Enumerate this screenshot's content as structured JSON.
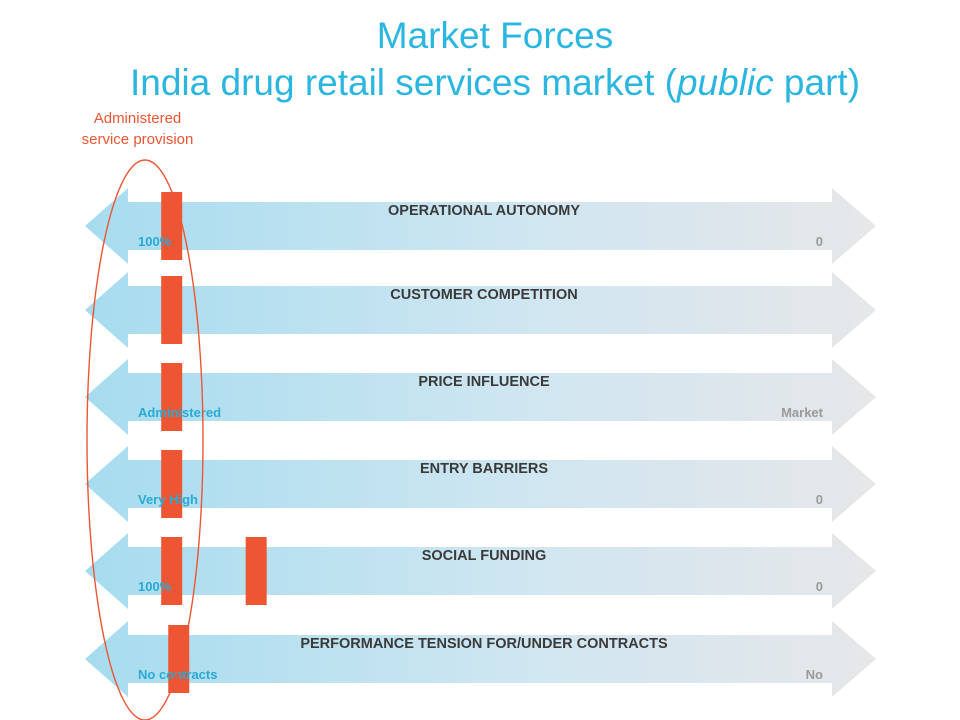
{
  "title": {
    "line1": "Market Forces",
    "line2_pre": "India drug retail services market (",
    "line2_italic": "public",
    "line2_post": " part)"
  },
  "caption": {
    "line1": "Administered",
    "line2": "service provision"
  },
  "colors": {
    "title": "#2ab6e0",
    "caption": "#ee5533",
    "marker": "#ee5533",
    "left_label": "#2aa9d6",
    "right_label": "#9a9a9a",
    "arrow_left": "#a6dcef",
    "arrow_right": "#e6e7e9"
  },
  "arrows": [
    {
      "label": "OPERATIONAL AUTONOMY",
      "left_end": "100%",
      "right_end": "0",
      "markers": [
        0.05
      ]
    },
    {
      "label": "CUSTOMER COMPETITION",
      "left_end": "",
      "right_end": "",
      "markers": [
        0.05
      ]
    },
    {
      "label": "PRICE INFLUENCE",
      "left_end": "Administered",
      "right_end": "Market",
      "markers": [
        0.05
      ]
    },
    {
      "label": "ENTRY BARRIERS",
      "left_end": "Very High",
      "right_end": "0",
      "markers": [
        0.05
      ]
    },
    {
      "label": "SOCIAL FUNDING",
      "left_end": "100%",
      "right_end": "0",
      "markers": [
        0.05,
        0.17
      ]
    },
    {
      "label": "PERFORMANCE TENSION FOR/UNDER CONTRACTS",
      "left_end": "No contracts",
      "right_end": "No",
      "markers": [
        0.06
      ]
    }
  ]
}
